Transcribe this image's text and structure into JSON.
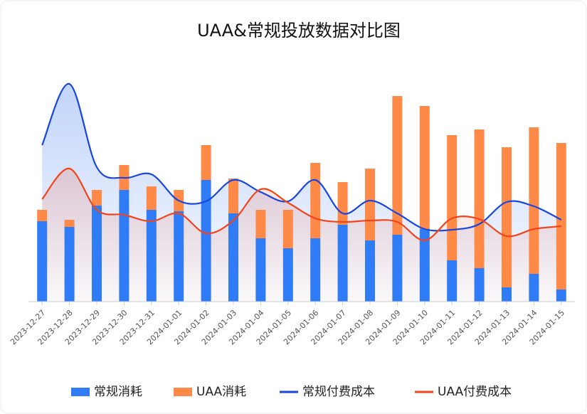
{
  "chart_data": {
    "type": "bar-line",
    "title": "UAA&常规投放数据对比图",
    "categories": [
      "2023-12-27",
      "2023-12-28",
      "2023-12-29",
      "2023-12-30",
      "2023-12-31",
      "2024-01-01",
      "2024-01-02",
      "2024-01-03",
      "2024-01-04",
      "2024-01-05",
      "2024-01-06",
      "2024-01-07",
      "2024-01-08",
      "2024-01-09",
      "2024-01-10",
      "2024-01-11",
      "2024-01-12",
      "2024-01-13",
      "2024-01-14",
      "2024-01-15"
    ],
    "ylim": [
      0,
      320
    ],
    "series": [
      {
        "name": "常规消耗",
        "kind": "bar",
        "color": "#2f7cf6",
        "values": [
          113,
          105,
          135,
          157,
          129,
          127,
          171,
          124,
          89,
          75,
          89,
          108,
          86,
          94,
          102,
          58,
          47,
          20,
          39,
          17
        ]
      },
      {
        "name": "UAA消耗",
        "kind": "bar",
        "color": "#ff8a48",
        "values": [
          16,
          10,
          22,
          35,
          33,
          30,
          49,
          49,
          40,
          54,
          106,
          60,
          101,
          195,
          173,
          176,
          195,
          197,
          206,
          206
        ]
      },
      {
        "name": "常规付费成本",
        "kind": "line",
        "color": "#1846e0",
        "values": [
          220,
          306,
          189,
          174,
          179,
          142,
          141,
          171,
          154,
          141,
          171,
          124,
          142,
          124,
          102,
          101,
          109,
          140,
          134,
          115
        ]
      },
      {
        "name": "UAA付费成本",
        "kind": "line",
        "color": "#f2441b",
        "values": [
          144,
          187,
          129,
          122,
          113,
          124,
          96,
          114,
          158,
          139,
          117,
          112,
          114,
          112,
          86,
          117,
          116,
          92,
          102,
          106
        ]
      }
    ]
  }
}
